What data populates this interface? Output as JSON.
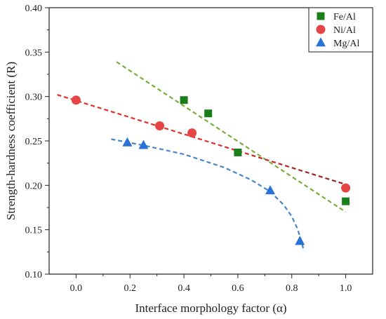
{
  "chart_data": {
    "type": "scatter",
    "title": "",
    "xlabel": "Interface morphology factor (α)",
    "ylabel": "Strength-hardness coefficient (R)",
    "xlim": [
      -0.1,
      1.1
    ],
    "ylim": [
      0.1,
      0.4
    ],
    "x_ticks": [
      0.0,
      0.2,
      0.4,
      0.6,
      0.8,
      1.0
    ],
    "x_tick_labels": [
      "0.0",
      "0.2",
      "0.4",
      "0.6",
      "0.8",
      "1.0"
    ],
    "y_ticks": [
      0.1,
      0.15,
      0.2,
      0.25,
      0.3,
      0.35,
      0.4
    ],
    "y_tick_labels": [
      "0.10",
      "0.15",
      "0.20",
      "0.25",
      "0.30",
      "0.35",
      "0.40"
    ],
    "grid": false,
    "legend_position": "top-right",
    "series": [
      {
        "name": "Fe/Al",
        "marker": "square",
        "color": "#1a7f1a",
        "fit_color": "#7aad3c",
        "points": [
          [
            0.4,
            0.296
          ],
          [
            0.49,
            0.281
          ],
          [
            0.6,
            0.237
          ],
          [
            1.0,
            0.182
          ]
        ],
        "fit": {
          "kind": "linear",
          "x_range": [
            0.15,
            1.0
          ],
          "y_range": [
            0.339,
            0.17
          ]
        }
      },
      {
        "name": "Ni/Al",
        "marker": "circle",
        "color": "#e64545",
        "fit_color": "#e0302a",
        "fit_color_end": "#8b2020",
        "points": [
          [
            0.0,
            0.296
          ],
          [
            0.31,
            0.267
          ],
          [
            0.43,
            0.259
          ],
          [
            1.0,
            0.197
          ]
        ],
        "fit": {
          "kind": "linear",
          "x_range": [
            -0.07,
            1.0
          ],
          "y_range": [
            0.302,
            0.201
          ]
        }
      },
      {
        "name": "Mg/Al",
        "marker": "triangle",
        "color": "#2a72d6",
        "fit_color": "#4a86c8",
        "points": [
          [
            0.19,
            0.248
          ],
          [
            0.25,
            0.245
          ],
          [
            0.72,
            0.194
          ],
          [
            0.83,
            0.137
          ]
        ],
        "fit": {
          "kind": "curve",
          "curve_points": [
            [
              0.13,
              0.252
            ],
            [
              0.25,
              0.245
            ],
            [
              0.4,
              0.235
            ],
            [
              0.55,
              0.22
            ],
            [
              0.65,
              0.206
            ],
            [
              0.72,
              0.193
            ],
            [
              0.77,
              0.178
            ],
            [
              0.8,
              0.165
            ],
            [
              0.82,
              0.152
            ],
            [
              0.835,
              0.138
            ],
            [
              0.845,
              0.126
            ]
          ]
        }
      }
    ]
  }
}
